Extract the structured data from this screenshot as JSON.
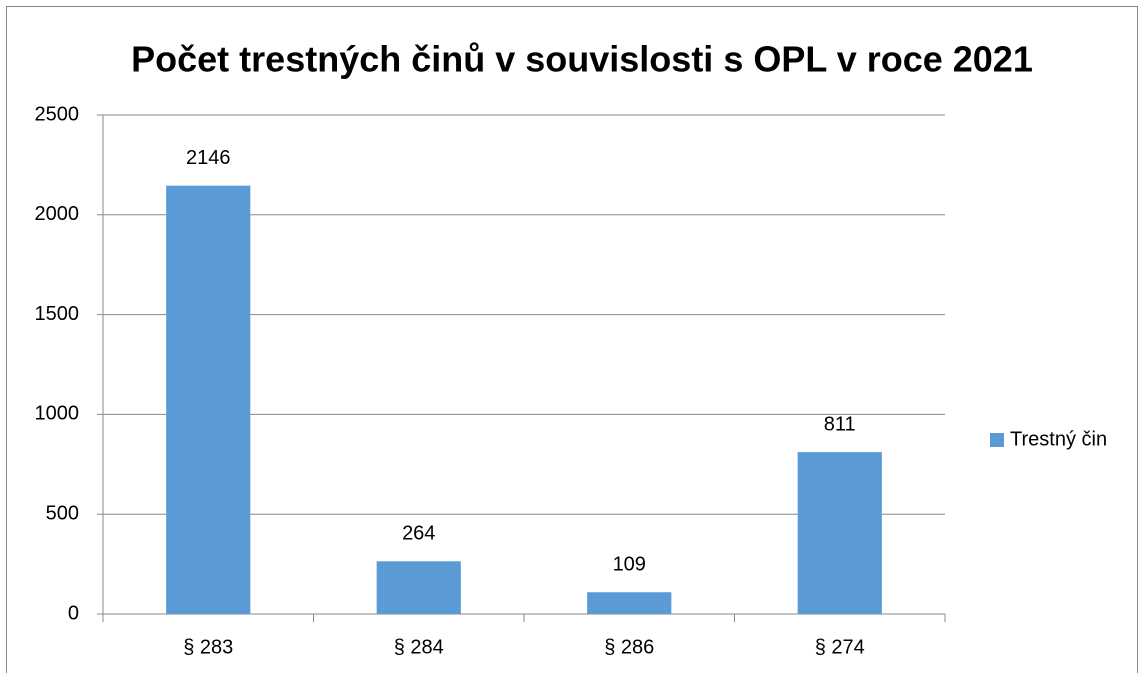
{
  "chart_data": {
    "type": "bar",
    "title": "Počet trestných činů v souvislosti s OPL v roce 2021",
    "categories": [
      "§ 283",
      "§ 284",
      "§ 286",
      "§ 274"
    ],
    "series": [
      {
        "name": "Trestný čin",
        "color": "#5b9bd5",
        "values": [
          2146,
          264,
          109,
          811
        ]
      }
    ],
    "ylim": [
      0,
      2500
    ],
    "yticks": [
      0,
      500,
      1000,
      1500,
      2000,
      2500
    ],
    "grid": true,
    "legend": "right"
  }
}
